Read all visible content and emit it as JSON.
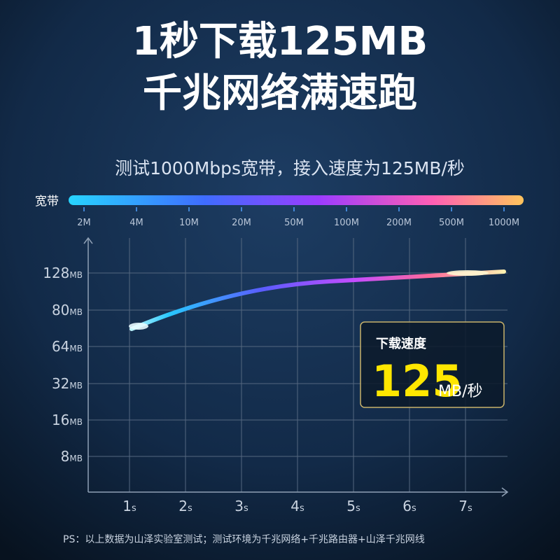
{
  "header": {
    "title_line1": "1秒下载125MB",
    "title_line2": "千兆网络满速跑",
    "subtitle": "测试1000Mbps宽带，接入速度为125MB/秒"
  },
  "bandwidth": {
    "label": "宽带",
    "ticks": [
      "2M",
      "4M",
      "10M",
      "20M",
      "50M",
      "100M",
      "200M",
      "500M",
      "1000M"
    ]
  },
  "y_axis": {
    "ticks": [
      {
        "value": "128",
        "unit": "MB"
      },
      {
        "value": "80",
        "unit": "MB"
      },
      {
        "value": "64",
        "unit": "MB"
      },
      {
        "value": "32",
        "unit": "MB"
      },
      {
        "value": "16",
        "unit": "MB"
      },
      {
        "value": "8",
        "unit": "MB"
      }
    ]
  },
  "x_axis": {
    "ticks": [
      {
        "value": "1",
        "unit": "s"
      },
      {
        "value": "2",
        "unit": "s"
      },
      {
        "value": "3",
        "unit": "s"
      },
      {
        "value": "4",
        "unit": "s"
      },
      {
        "value": "5",
        "unit": "s"
      },
      {
        "value": "6",
        "unit": "s"
      },
      {
        "value": "7",
        "unit": "s"
      }
    ]
  },
  "callout": {
    "label": "下载速度",
    "value": "125",
    "unit": "MB/秒"
  },
  "footnote": "PS：以上数据为山泽实验室测试；测试环境为千兆网络+千兆路由器+山泽千兆网线"
}
